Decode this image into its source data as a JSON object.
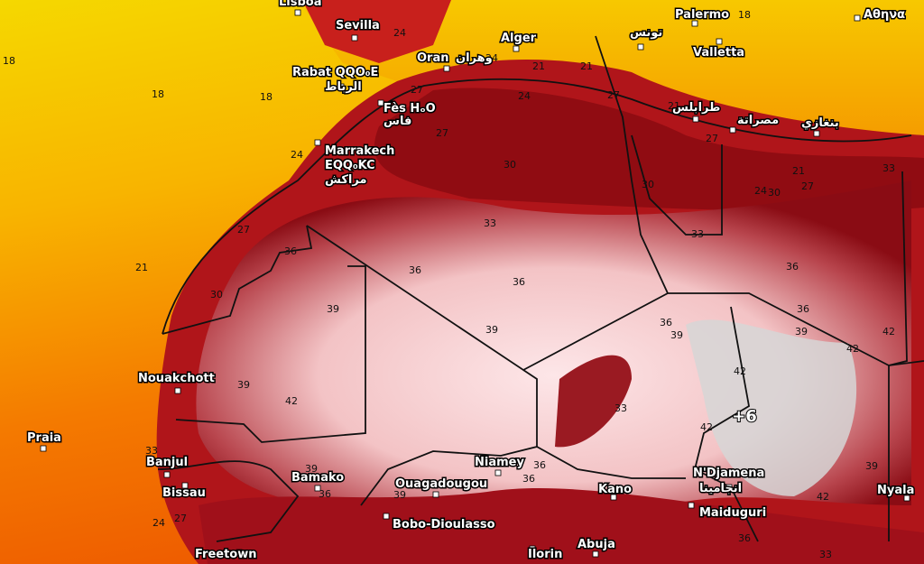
{
  "map": {
    "cities": [
      "Lisboa",
      "Sevilla",
      "Palermo",
      "Αθηνα",
      "تونس",
      "Alger",
      "Valletta",
      "Oran",
      "وهران",
      "Rabat QQO₀E",
      "الرباط",
      "Fès HₒO",
      "فاس",
      "طرابلس",
      "مصراتة",
      "بنغازي",
      "Marrakech",
      "EQQ₀KC",
      "مراكش",
      "Nouakchott",
      "Praia",
      "Banjul",
      "Bissau",
      "Bamako",
      "Niamey",
      "Ouagadougou",
      "Kano",
      "N'Djamena",
      "انجامينا",
      "Maiduguri",
      "Bobo-Dioulasso",
      "Freetown",
      "Ilorin",
      "Abuja",
      "Nyala"
    ],
    "contour_labels": [
      "18",
      "18",
      "18",
      "18",
      "21",
      "24",
      "24",
      "21",
      "21",
      "24",
      "21",
      "27",
      "27",
      "27",
      "27",
      "24",
      "27",
      "30",
      "30",
      "30",
      "30",
      "24",
      "21",
      "27",
      "33",
      "33",
      "33",
      "36",
      "36",
      "36",
      "36",
      "39",
      "39",
      "36",
      "39",
      "36",
      "39",
      "42",
      "42",
      "42",
      "39",
      "42",
      "33",
      "42",
      "42",
      "39",
      "39",
      "36",
      "36",
      "39",
      "36",
      "33",
      "24",
      "27",
      "36",
      "33",
      "+6"
    ]
  }
}
